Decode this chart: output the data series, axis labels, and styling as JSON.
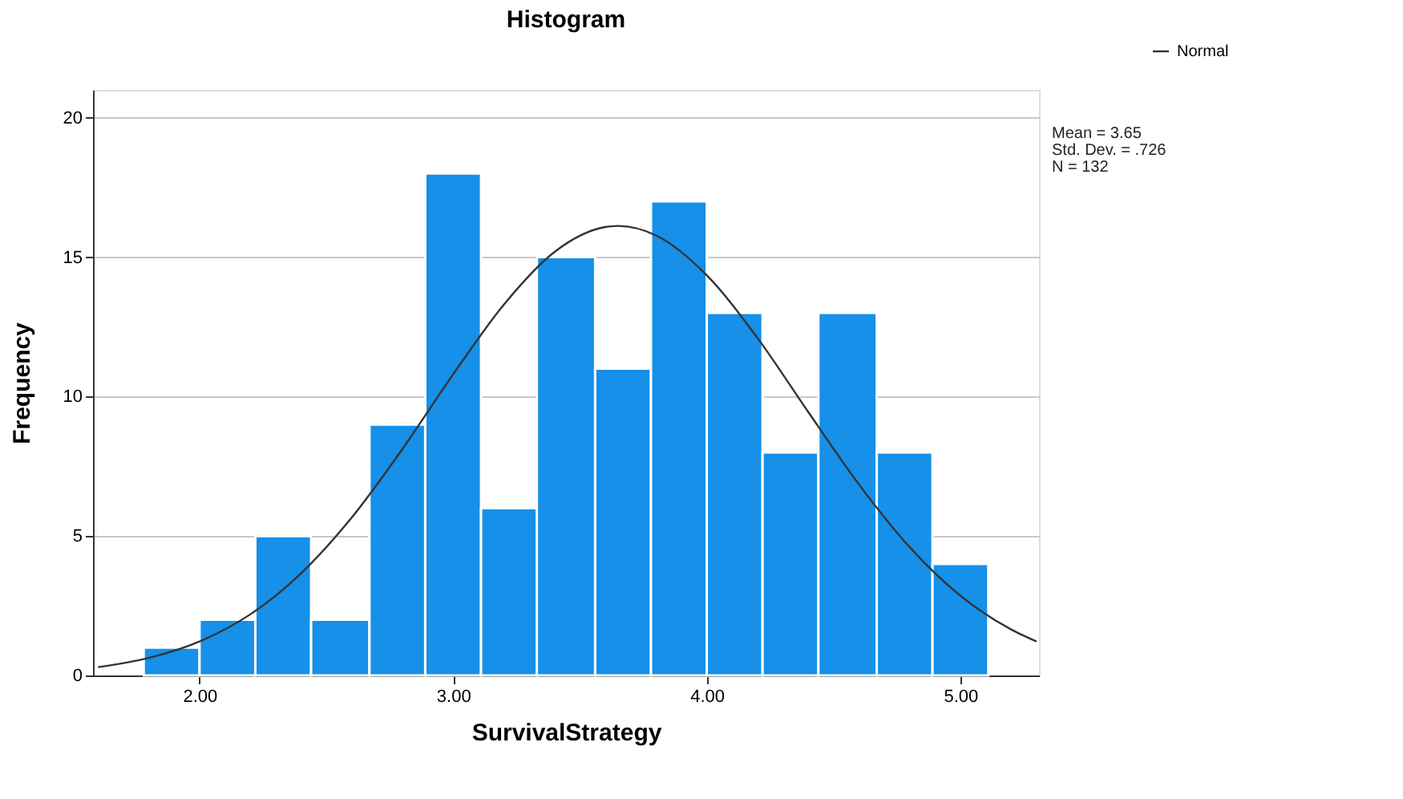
{
  "chart_data": {
    "type": "histogram",
    "title": "Histogram",
    "xlabel": "SurvivalStrategy",
    "ylabel": "Frequency",
    "bins": [
      1.78,
      2.0,
      2.22,
      2.44,
      2.67,
      2.89,
      3.11,
      3.33,
      3.56,
      3.78,
      4.0,
      4.22,
      4.44,
      4.67,
      4.89,
      5.11
    ],
    "values": [
      1,
      2,
      5,
      2,
      9,
      18,
      6,
      15,
      11,
      17,
      13,
      8,
      13,
      8,
      4
    ],
    "color": "#1690e8",
    "series": [
      {
        "name": "Normal",
        "type": "line",
        "color": "#333333",
        "x": [
          1.6,
          1.8,
          2.0,
          2.2,
          2.4,
          2.6,
          2.8,
          3.0,
          3.2,
          3.4,
          3.6,
          3.65,
          3.8,
          4.0,
          4.2,
          4.4,
          4.6,
          4.8,
          5.0,
          5.2,
          5.3
        ],
        "values": [
          0.3,
          0.63,
          1.22,
          2.19,
          3.66,
          5.66,
          8.12,
          10.8,
          13.3,
          15.19,
          16.08,
          16.12,
          15.78,
          14.35,
          12.1,
          9.45,
          6.85,
          4.6,
          2.86,
          1.65,
          1.22
        ]
      }
    ],
    "xlim": [
      1.58,
      5.31
    ],
    "ylim": [
      0,
      21
    ],
    "xticks": [
      {
        "value": 2,
        "label": "2.00"
      },
      {
        "value": 3,
        "label": "3.00"
      },
      {
        "value": 4,
        "label": "4.00"
      },
      {
        "value": 5,
        "label": "5.00"
      }
    ],
    "yticks": [
      0,
      5,
      10,
      15,
      20
    ],
    "grid": "y",
    "legend": "top right",
    "annotations": [
      "Mean = 3.65",
      "Std. Dev. = .726",
      "N = 132"
    ]
  }
}
